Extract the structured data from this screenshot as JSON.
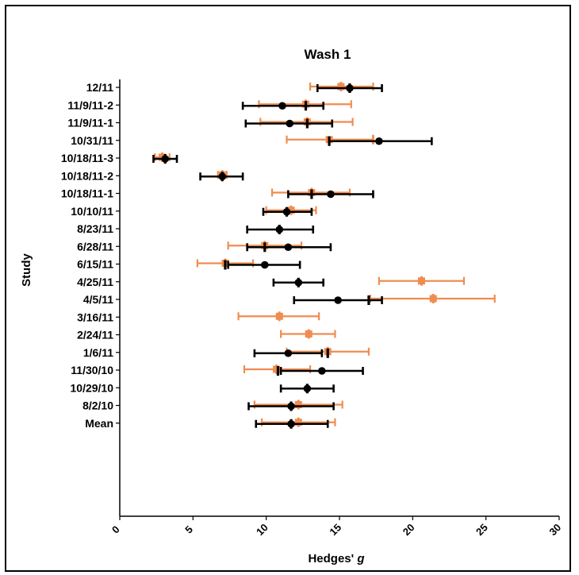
{
  "chart_data": {
    "type": "scatter",
    "orientation": "horizontal-forest-plot",
    "title": "Wash 1",
    "xlabel": "Hedges' g",
    "ylabel": "Study",
    "xlim": [
      0,
      30
    ],
    "xticks": [
      0,
      5,
      10,
      15,
      20,
      25,
      30
    ],
    "grid": false,
    "legend": "none",
    "categories": [
      "12/11",
      "11/9/11-2",
      "11/9/11-1",
      "10/31/11",
      "10/18/11-3",
      "10/18/11-2",
      "10/18/11-1",
      "10/10/11",
      "8/23/11",
      "6/28/11",
      "6/15/11",
      "4/25/11",
      "4/5/11",
      "3/16/11",
      "2/24/11",
      "1/6/11",
      "11/30/10",
      "10/29/10",
      "8/2/10",
      "Mean"
    ],
    "series": [
      {
        "color": "#000000",
        "marker": "circle",
        "points": [
          {
            "cat": "12/11",
            "est": 15.7,
            "lo": 13.5,
            "hi": 17.9,
            "inner": 15.7
          },
          {
            "cat": "11/9/11-2",
            "est": 11.1,
            "lo": 8.4,
            "hi": 13.9,
            "inner": 12.7
          },
          {
            "cat": "11/9/11-1",
            "est": 11.6,
            "lo": 8.6,
            "hi": 14.5,
            "inner": 12.8
          },
          {
            "cat": "10/31/11",
            "est": 17.7,
            "lo": 14.3,
            "hi": 21.3,
            "inner": 14.3
          },
          {
            "cat": "10/18/11-3",
            "est": 3.1,
            "lo": 2.3,
            "hi": 3.9,
            "inner": 3.1
          },
          {
            "cat": "10/18/11-2",
            "est": 7.0,
            "lo": 5.5,
            "hi": 8.4,
            "inner": 7.0
          },
          {
            "cat": "10/18/11-1",
            "est": 14.4,
            "lo": 11.5,
            "hi": 17.3,
            "inner": 13.1
          },
          {
            "cat": "10/10/11",
            "est": 11.4,
            "lo": 9.8,
            "hi": 13.1,
            "inner": 11.4
          },
          {
            "cat": "8/23/11",
            "est": 10.9,
            "lo": 8.7,
            "hi": 13.2,
            "inner": 10.9
          },
          {
            "cat": "6/28/11",
            "est": 11.5,
            "lo": 8.7,
            "hi": 14.4,
            "inner": 9.9
          },
          {
            "cat": "6/15/11",
            "est": 9.9,
            "lo": 7.4,
            "hi": 12.3,
            "inner": 7.2
          },
          {
            "cat": "4/25/11",
            "est": 12.2,
            "lo": 10.5,
            "hi": 13.9,
            "inner": 12.2
          },
          {
            "cat": "4/5/11",
            "est": 14.9,
            "lo": 11.9,
            "hi": 17.9,
            "inner": 17.0
          },
          {
            "cat": "1/6/11",
            "est": 11.5,
            "lo": 9.2,
            "hi": 13.8,
            "inner": 14.2
          },
          {
            "cat": "11/30/10",
            "est": 13.8,
            "lo": 11.0,
            "hi": 16.6,
            "inner": 10.8
          },
          {
            "cat": "10/29/10",
            "est": 12.8,
            "lo": 11.0,
            "hi": 14.6,
            "inner": 12.8
          },
          {
            "cat": "8/2/10",
            "est": 11.7,
            "lo": 8.8,
            "hi": 14.6,
            "inner": 11.7
          },
          {
            "cat": "Mean",
            "est": 11.7,
            "lo": 9.3,
            "hi": 14.2,
            "inner": 11.7
          }
        ]
      },
      {
        "color": "#f08c50",
        "marker": "square",
        "points": [
          {
            "cat": "12/11",
            "est": 15.1,
            "lo": 13.0,
            "hi": 17.3,
            "inner": 15.1
          },
          {
            "cat": "11/9/11-2",
            "est": 12.7,
            "lo": 9.5,
            "hi": 15.8,
            "inner": 12.7
          },
          {
            "cat": "11/9/11-1",
            "est": 12.8,
            "lo": 9.6,
            "hi": 15.9,
            "inner": 12.8
          },
          {
            "cat": "10/31/11",
            "est": 14.3,
            "lo": 11.4,
            "hi": 17.3,
            "inner": 17.3
          },
          {
            "cat": "10/18/11-3",
            "est": 2.9,
            "lo": 2.4,
            "hi": 3.4,
            "inner": 2.9
          },
          {
            "cat": "10/18/11-2",
            "est": 7.0,
            "lo": 6.7,
            "hi": 7.3,
            "inner": 7.0
          },
          {
            "cat": "10/18/11-1",
            "est": 13.1,
            "lo": 10.4,
            "hi": 15.7,
            "inner": 13.1
          },
          {
            "cat": "10/10/11",
            "est": 11.7,
            "lo": 10.0,
            "hi": 13.4,
            "inner": 11.7
          },
          {
            "cat": "6/28/11",
            "est": 9.9,
            "lo": 7.4,
            "hi": 12.4,
            "inner": 9.9
          },
          {
            "cat": "6/15/11",
            "est": 7.2,
            "lo": 5.3,
            "hi": 9.1,
            "inner": 7.2
          },
          {
            "cat": "4/25/11",
            "est": 20.6,
            "lo": 17.7,
            "hi": 23.5,
            "inner": 20.6
          },
          {
            "cat": "4/5/11",
            "est": 21.4,
            "lo": 17.1,
            "hi": 25.6,
            "inner": 21.4
          },
          {
            "cat": "3/16/11",
            "est": 10.9,
            "lo": 8.1,
            "hi": 13.6,
            "inner": 10.9
          },
          {
            "cat": "2/24/11",
            "est": 12.9,
            "lo": 11.0,
            "hi": 14.7,
            "inner": 12.9
          },
          {
            "cat": "1/6/11",
            "est": 14.2,
            "lo": 11.4,
            "hi": 17.0,
            "inner": 14.2
          },
          {
            "cat": "11/30/10",
            "est": 10.7,
            "lo": 8.5,
            "hi": 13.0,
            "inner": 10.7
          },
          {
            "cat": "8/2/10",
            "est": 12.2,
            "lo": 9.2,
            "hi": 15.2,
            "inner": 12.2
          },
          {
            "cat": "Mean",
            "est": 12.2,
            "lo": 9.7,
            "hi": 14.7,
            "inner": 12.2
          }
        ]
      }
    ]
  }
}
